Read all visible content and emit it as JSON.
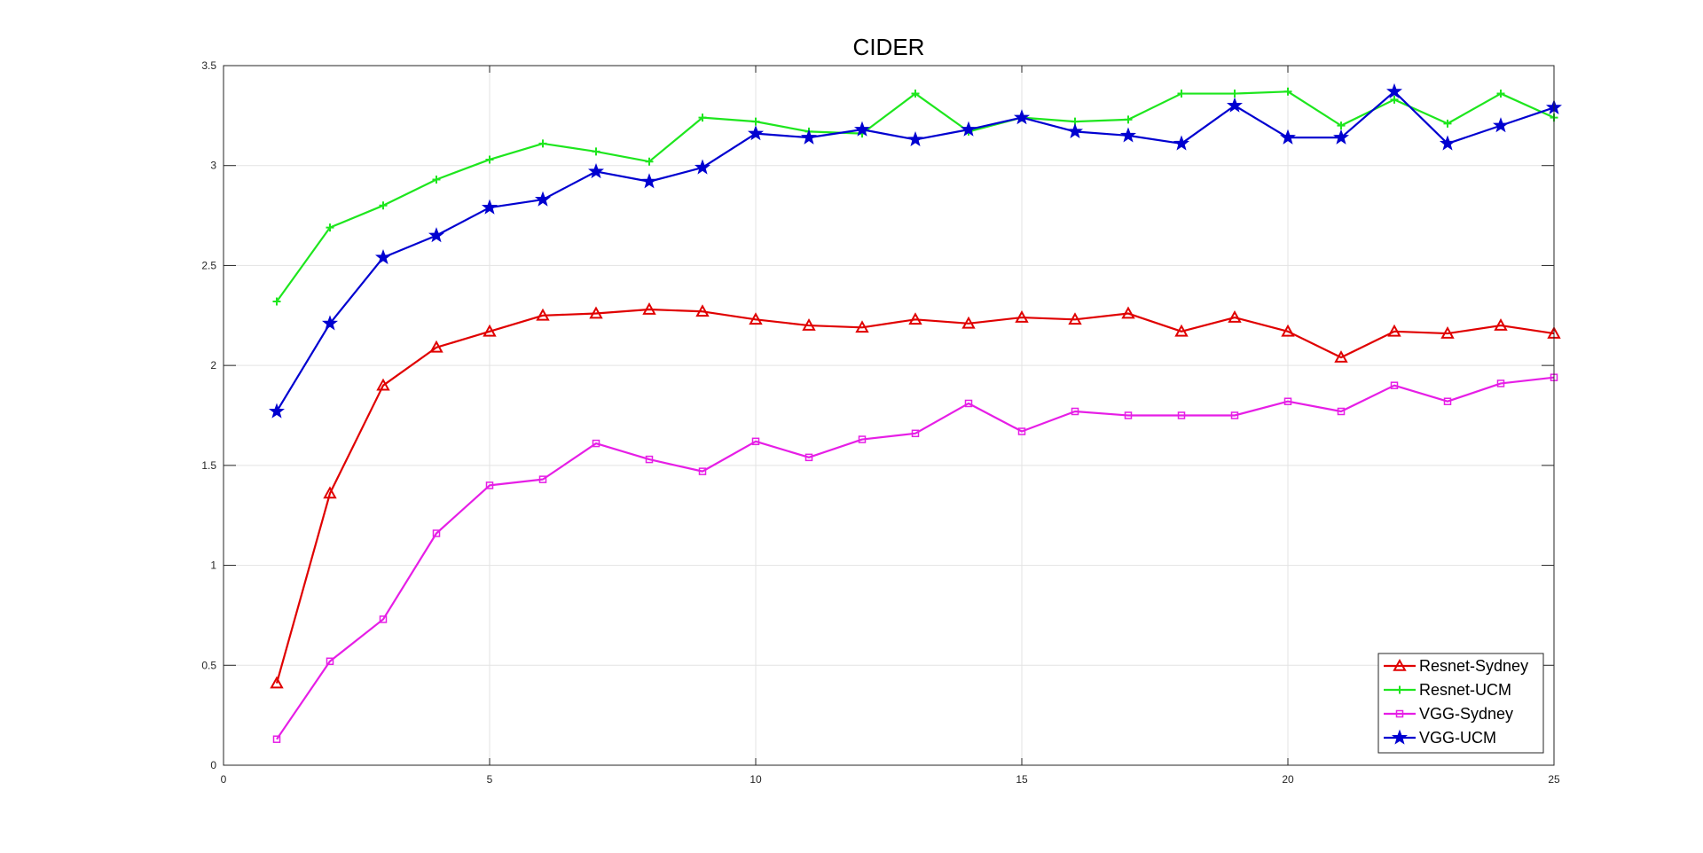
{
  "chart_data": {
    "type": "line",
    "title": "CIDER",
    "xlabel": "",
    "ylabel": "",
    "xlim": [
      0,
      25
    ],
    "ylim": [
      0,
      3.5
    ],
    "xticks": [
      0,
      5,
      10,
      15,
      20,
      25
    ],
    "yticks": [
      0,
      0.5,
      1,
      1.5,
      2,
      2.5,
      3,
      3.5
    ],
    "xtick_labels": [
      "0",
      "5",
      "10",
      "15",
      "20",
      "25"
    ],
    "ytick_labels": [
      "0",
      "0.5",
      "1",
      "1.5",
      "2",
      "2.5",
      "3",
      "3.5"
    ],
    "grid": true,
    "legend_position": "bottom-right",
    "x": [
      1,
      2,
      3,
      4,
      5,
      6,
      7,
      8,
      9,
      10,
      11,
      12,
      13,
      14,
      15,
      16,
      17,
      18,
      19,
      20,
      21,
      22,
      23,
      24,
      25
    ],
    "series": [
      {
        "name": "Resnet-Sydney",
        "color": "#e00000",
        "marker": "triangle",
        "values": [
          0.41,
          1.36,
          1.9,
          2.09,
          2.17,
          2.25,
          2.26,
          2.28,
          2.27,
          2.23,
          2.2,
          2.19,
          2.23,
          2.21,
          2.24,
          2.23,
          2.26,
          2.17,
          2.24,
          2.17,
          2.04,
          2.17,
          2.16,
          2.2,
          2.16
        ]
      },
      {
        "name": "Resnet-UCM",
        "color": "#1ee61e",
        "marker": "plus",
        "values": [
          2.32,
          2.69,
          2.8,
          2.93,
          3.03,
          3.11,
          3.07,
          3.02,
          3.24,
          3.22,
          3.17,
          3.16,
          3.36,
          3.17,
          3.24,
          3.22,
          3.23,
          3.36,
          3.36,
          3.37,
          3.2,
          3.33,
          3.21,
          3.36,
          3.24
        ]
      },
      {
        "name": "VGG-Sydney",
        "color": "#e61ee6",
        "marker": "square",
        "values": [
          0.13,
          0.52,
          0.73,
          1.16,
          1.4,
          1.43,
          1.61,
          1.53,
          1.47,
          1.62,
          1.54,
          1.63,
          1.66,
          1.81,
          1.67,
          1.77,
          1.75,
          1.75,
          1.75,
          1.82,
          1.77,
          1.9,
          1.82,
          1.91,
          1.94
        ]
      },
      {
        "name": "VGG-UCM",
        "color": "#0000d0",
        "marker": "star",
        "values": [
          1.77,
          2.21,
          2.54,
          2.65,
          2.79,
          2.83,
          2.97,
          2.92,
          2.99,
          3.16,
          3.14,
          3.18,
          3.13,
          3.18,
          3.24,
          3.17,
          3.15,
          3.11,
          3.3,
          3.14,
          3.14,
          3.37,
          3.11,
          3.2,
          3.29
        ]
      }
    ]
  }
}
